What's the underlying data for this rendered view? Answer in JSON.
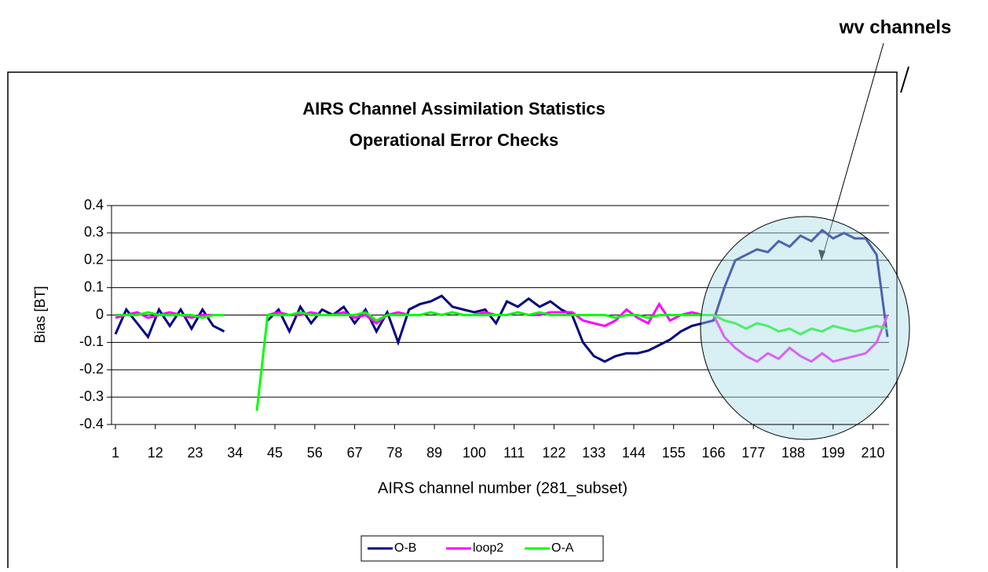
{
  "chart_data": {
    "type": "line",
    "title": "AIRS Channel Assimilation Statistics",
    "subtitle": "Operational Error Checks",
    "x_label": "AIRS channel number (281_subset)",
    "y_label": "Bias [BT]",
    "annotation": "wv channels",
    "x": [
      1,
      4,
      7,
      10,
      13,
      16,
      19,
      22,
      25,
      28,
      31,
      34,
      37,
      40,
      43,
      46,
      49,
      52,
      55,
      58,
      61,
      64,
      67,
      70,
      73,
      76,
      79,
      82,
      85,
      88,
      91,
      94,
      97,
      100,
      103,
      106,
      109,
      112,
      115,
      118,
      121,
      124,
      127,
      130,
      133,
      136,
      139,
      142,
      145,
      148,
      151,
      154,
      157,
      160,
      163,
      166,
      169,
      172,
      175,
      178,
      181,
      184,
      187,
      190,
      193,
      196,
      199,
      202,
      205,
      208,
      211,
      214
    ],
    "xlim": [
      1,
      214
    ],
    "xticks": [
      1,
      12,
      23,
      34,
      45,
      56,
      67,
      78,
      89,
      100,
      111,
      122,
      133,
      144,
      155,
      166,
      177,
      188,
      199,
      210
    ],
    "ylim": [
      -0.4,
      0.4
    ],
    "yticks": [
      0.4,
      0.3,
      0.2,
      0.1,
      0,
      -0.1,
      -0.2,
      -0.3,
      -0.4
    ],
    "grid": true,
    "series": [
      {
        "name": "O-B",
        "color": "#000080",
        "values": [
          -0.07,
          0.02,
          -0.03,
          -0.08,
          0.02,
          -0.04,
          0.02,
          -0.05,
          0.02,
          -0.04,
          -0.06,
          null,
          null,
          null,
          -0.02,
          0.02,
          -0.06,
          0.03,
          -0.03,
          0.02,
          0,
          0.03,
          -0.03,
          0.02,
          -0.06,
          0.01,
          -0.1,
          0.02,
          0.04,
          0.05,
          0.07,
          0.03,
          0.02,
          0.01,
          0.02,
          -0.03,
          0.05,
          0.03,
          0.06,
          0.03,
          0.05,
          0.02,
          0,
          -0.1,
          -0.15,
          -0.17,
          -0.15,
          -0.14,
          -0.14,
          -0.13,
          -0.11,
          -0.09,
          -0.06,
          -0.04,
          -0.03,
          -0.02,
          0.1,
          0.2,
          0.22,
          0.24,
          0.23,
          0.27,
          0.25,
          0.29,
          0.27,
          0.31,
          0.28,
          0.3,
          0.28,
          0.28,
          0.22,
          -0.08
        ]
      },
      {
        "name": "loop2",
        "color": "#ff00ff",
        "values": [
          -0.01,
          0,
          0.01,
          -0.01,
          0,
          0.01,
          0,
          -0.01,
          0,
          0,
          0,
          null,
          null,
          null,
          0,
          0.01,
          0,
          0,
          0.01,
          0,
          0,
          0.01,
          -0.01,
          0,
          -0.03,
          0,
          0.01,
          0,
          0,
          0.01,
          0,
          0.01,
          0,
          0,
          0.01,
          0,
          0,
          0.01,
          0,
          0,
          0.01,
          0.01,
          0.01,
          -0.02,
          -0.03,
          -0.04,
          -0.02,
          0.02,
          -0.01,
          -0.03,
          0.04,
          -0.02,
          0,
          0.01,
          0,
          0,
          -0.08,
          -0.12,
          -0.15,
          -0.17,
          -0.14,
          -0.16,
          -0.12,
          -0.15,
          -0.17,
          -0.14,
          -0.17,
          -0.16,
          -0.15,
          -0.14,
          -0.1,
          0
        ]
      },
      {
        "name": "O-A",
        "color": "#00ff00",
        "values": [
          0,
          0,
          0,
          0.01,
          0,
          0,
          0,
          0,
          -0.01,
          0,
          0,
          null,
          null,
          -0.35,
          0,
          0,
          0,
          0.01,
          0,
          0,
          0,
          0,
          0,
          0.01,
          -0.02,
          0,
          0,
          0,
          0,
          0.01,
          0,
          0.01,
          0,
          0,
          0,
          0,
          0,
          0.01,
          0,
          0.01,
          0,
          0,
          0,
          0,
          0,
          0,
          -0.01,
          0,
          0,
          -0.01,
          0,
          0,
          0,
          0,
          0,
          0,
          -0.02,
          -0.03,
          -0.05,
          -0.03,
          -0.04,
          -0.06,
          -0.05,
          -0.07,
          -0.05,
          -0.06,
          -0.04,
          -0.05,
          -0.06,
          -0.05,
          -0.04,
          -0.05
        ]
      }
    ]
  }
}
